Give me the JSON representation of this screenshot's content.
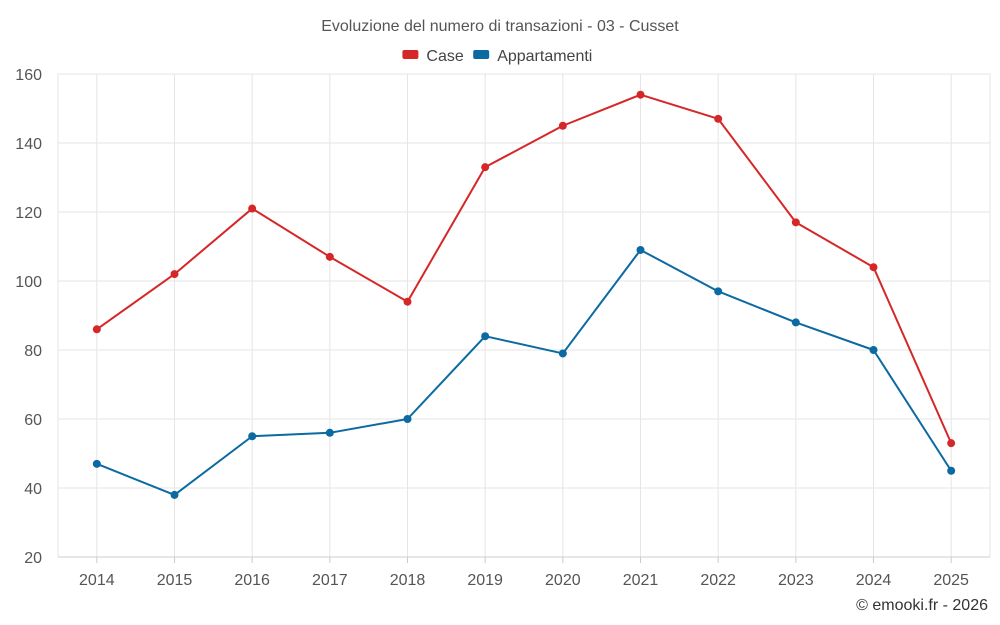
{
  "chart_data": {
    "type": "line",
    "title": "Evoluzione del numero di transazioni - 03 - Cusset",
    "categories": [
      "2014",
      "2015",
      "2016",
      "2017",
      "2018",
      "2019",
      "2020",
      "2021",
      "2022",
      "2023",
      "2024",
      "2025"
    ],
    "series": [
      {
        "name": "Case",
        "color": "#d62728",
        "values": [
          86,
          102,
          121,
          107,
          94,
          133,
          145,
          154,
          147,
          117,
          104,
          53
        ]
      },
      {
        "name": "Appartamenti",
        "color": "#0a6aa1",
        "values": [
          47,
          38,
          55,
          56,
          60,
          84,
          79,
          109,
          97,
          88,
          80,
          45
        ]
      }
    ],
    "ylim": [
      20,
      160
    ],
    "yticks": [
      20,
      40,
      60,
      80,
      100,
      120,
      140,
      160
    ],
    "xlabel": "",
    "ylabel": "",
    "grid": true,
    "legend_position": "top-center"
  },
  "credit": "© emooki.fr - 2026"
}
